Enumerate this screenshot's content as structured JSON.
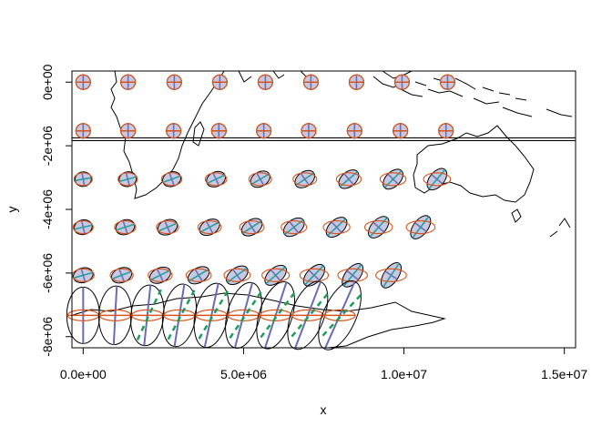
{
  "chart_data": {
    "type": "scatter",
    "title": "",
    "xlabel": "x",
    "ylabel": "y",
    "xlim": [
      -350000,
      15350000
    ],
    "ylim": [
      -8350000,
      350000
    ],
    "x_ticks": [
      0,
      5000000,
      10000000,
      15000000
    ],
    "x_tick_labels": [
      "0.0e+00",
      "5.0e+06",
      "1.0e+07",
      "1.5e+07"
    ],
    "y_ticks": [
      0,
      -2000000,
      -4000000,
      -6000000,
      -8000000
    ],
    "y_tick_labels": [
      "0e+00",
      "-2e+06",
      "-4e+06",
      "-6e+06",
      "-8e+06"
    ],
    "reference_lines": [
      {
        "orientation": "horizontal",
        "y": -1780000
      }
    ],
    "grid": false,
    "legend": "none",
    "colors": {
      "circle": "#000000",
      "major_axis": "#6a6ab5",
      "minor_axis": "#1a9e9e",
      "reference_ellipse": "#d9541a",
      "dashed_axis": "#1b9e5a",
      "outline": "#000000"
    },
    "rows": [
      {
        "y": 0,
        "x": [
          0,
          1400000,
          2840000,
          4260000,
          5680000,
          7100000,
          8520000,
          9940000,
          11360000
        ],
        "indicatrix": "circle"
      },
      {
        "y": -1530000,
        "x": [
          0,
          1400000,
          2820000,
          4230000,
          5630000,
          7030000,
          8460000,
          9890000,
          11310000
        ],
        "indicatrix": "near-circle"
      },
      {
        "y": -3050000,
        "x": [
          0,
          1390000,
          2760000,
          4140000,
          5520000,
          6910000,
          8280000,
          9660000,
          11030000
        ],
        "indicatrix": "tilted-ellipse"
      },
      {
        "y": -4560000,
        "x": [
          0,
          1310000,
          2630000,
          3940000,
          5260000,
          6570000,
          7900000,
          9210000,
          10520000
        ],
        "indicatrix": "tilted-ellipse"
      },
      {
        "y": -6070000,
        "x": [
          0,
          1200000,
          2400000,
          3600000,
          4800000,
          6000000,
          7200000,
          8400000,
          9600000
        ],
        "indicatrix": "tilted-ellipse"
      },
      {
        "y": -7330000,
        "x": [
          0,
          1000000,
          2000000,
          3000000,
          4000000,
          5000000,
          6000000,
          7000000,
          8000000
        ],
        "indicatrix": "stretched-ellipse"
      }
    ]
  }
}
